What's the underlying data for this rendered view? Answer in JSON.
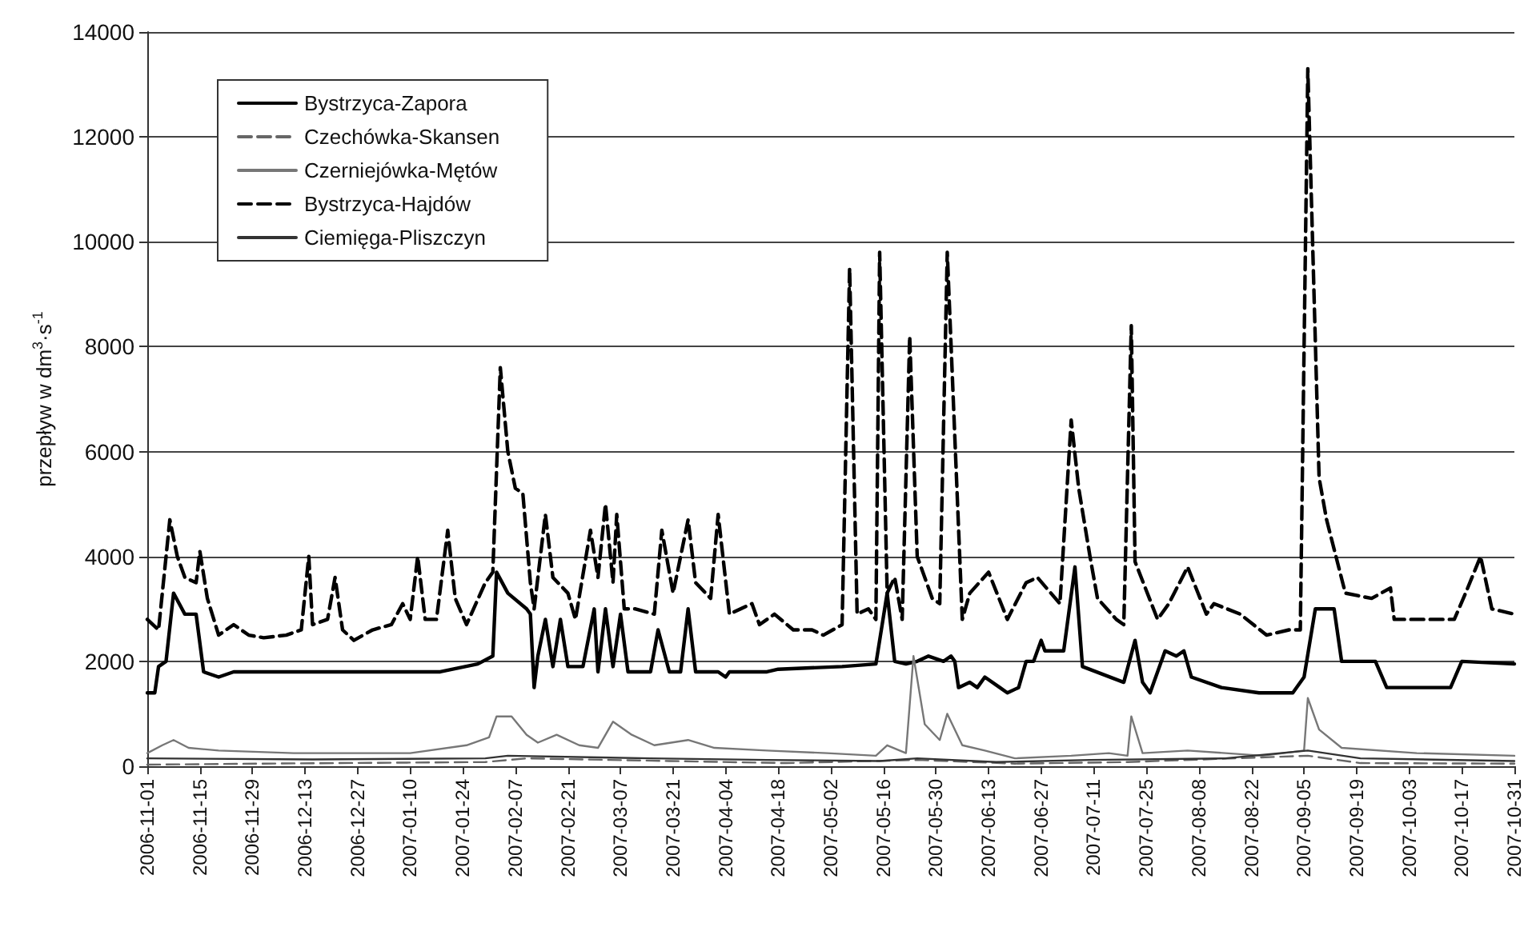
{
  "chart_data": {
    "type": "line",
    "ylabel": "przepływ w dm$^{3}$·s$^{-1}$",
    "ylim": [
      0,
      14000
    ],
    "yticks": [
      0,
      2000,
      4000,
      6000,
      8000,
      10000,
      12000,
      14000
    ],
    "xlim": [
      "2006-11-01",
      "2007-10-31"
    ],
    "xticks": [
      "2006-11-01",
      "2006-11-15",
      "2006-11-29",
      "2006-12-13",
      "2006-12-27",
      "2007-01-10",
      "2007-01-24",
      "2007-02-07",
      "2007-02-21",
      "2007-03-07",
      "2007-03-21",
      "2007-04-04",
      "2007-04-18",
      "2007-05-02",
      "2007-05-16",
      "2007-05-30",
      "2007-06-13",
      "2007-06-27",
      "2007-07-11",
      "2007-07-25",
      "2007-08-08",
      "2007-08-22",
      "2007-09-05",
      "2007-09-19",
      "2007-10-03",
      "2007-10-17",
      "2007-10-31"
    ],
    "grid": "y",
    "legend": "top left",
    "marker": "none",
    "series": [
      {
        "name": "Bystrzyca-Zapora",
        "color": "#000000",
        "line_style": "solid",
        "x": [
          "2006-11-01",
          "2006-11-03",
          "2006-11-04",
          "2006-11-06",
          "2006-11-08",
          "2006-11-11",
          "2006-11-14",
          "2006-11-16",
          "2006-11-20",
          "2006-11-24",
          "2006-12-10",
          "2007-01-18",
          "2007-01-28",
          "2007-02-01",
          "2007-02-02",
          "2007-02-05",
          "2007-02-10",
          "2007-02-11",
          "2007-02-12",
          "2007-02-13",
          "2007-02-15",
          "2007-02-17",
          "2007-02-19",
          "2007-02-21",
          "2007-02-25",
          "2007-02-28",
          "2007-03-01",
          "2007-03-03",
          "2007-03-05",
          "2007-03-07",
          "2007-03-09",
          "2007-03-15",
          "2007-03-17",
          "2007-03-20",
          "2007-03-23",
          "2007-03-25",
          "2007-03-27",
          "2007-04-02",
          "2007-04-04",
          "2007-04-05",
          "2007-04-15",
          "2007-04-18",
          "2007-05-05",
          "2007-05-14",
          "2007-05-17",
          "2007-05-19",
          "2007-05-22",
          "2007-05-25",
          "2007-05-28",
          "2007-06-01",
          "2007-06-03",
          "2007-06-04",
          "2007-06-05",
          "2007-06-08",
          "2007-06-10",
          "2007-06-12",
          "2007-06-16",
          "2007-06-18",
          "2007-06-21",
          "2007-06-23",
          "2007-06-25",
          "2007-06-27",
          "2007-06-28",
          "2007-07-03",
          "2007-07-06",
          "2007-07-08",
          "2007-07-19",
          "2007-07-22",
          "2007-07-24",
          "2007-07-26",
          "2007-07-30",
          "2007-08-02",
          "2007-08-04",
          "2007-08-06",
          "2007-08-14",
          "2007-08-24",
          "2007-09-02",
          "2007-09-05",
          "2007-09-08",
          "2007-09-13",
          "2007-09-15",
          "2007-09-24",
          "2007-09-27",
          "2007-10-14",
          "2007-10-17",
          "2007-10-31"
        ],
        "values": [
          1400,
          1400,
          1900,
          2000,
          3300,
          2900,
          2900,
          1800,
          1700,
          1800,
          1800,
          1800,
          1950,
          2100,
          3700,
          3300,
          3000,
          2900,
          1500,
          2100,
          2800,
          1900,
          2800,
          1900,
          1900,
          3000,
          1800,
          3000,
          1900,
          2900,
          1800,
          1800,
          2600,
          1800,
          1800,
          3000,
          1800,
          1800,
          1700,
          1800,
          1800,
          1850,
          1900,
          1950,
          3300,
          2000,
          1950,
          2000,
          2100,
          2000,
          2100,
          2000,
          1500,
          1600,
          1500,
          1700,
          1500,
          1400,
          1500,
          2000,
          2000,
          2400,
          2200,
          2200,
          3800,
          1900,
          1600,
          2400,
          1600,
          1400,
          2200,
          2100,
          2200,
          1700,
          1500,
          1400,
          1400,
          1700,
          3000,
          3000,
          2000,
          2000,
          1500,
          1500,
          2000,
          1950
        ]
      },
      {
        "name": "Czechówka-Skansen",
        "color": "#666666",
        "line_style": "dashed",
        "x": [
          "2006-11-01",
          "2006-12-01",
          "2007-01-30",
          "2007-02-10",
          "2007-03-20",
          "2007-04-20",
          "2007-05-25",
          "2007-06-20",
          "2007-07-20",
          "2007-09-06",
          "2007-09-20",
          "2007-10-31"
        ],
        "values": [
          30,
          50,
          80,
          150,
          100,
          60,
          120,
          50,
          80,
          200,
          60,
          50
        ]
      },
      {
        "name": "Czerniejówka-Mętów",
        "color": "#777777",
        "line_style": "solid",
        "x": [
          "2006-11-01",
          "2006-11-05",
          "2006-11-08",
          "2006-11-12",
          "2006-11-20",
          "2006-12-10",
          "2007-01-10",
          "2007-01-25",
          "2007-01-31",
          "2007-02-02",
          "2007-02-06",
          "2007-02-10",
          "2007-02-13",
          "2007-02-18",
          "2007-02-24",
          "2007-03-01",
          "2007-03-05",
          "2007-03-10",
          "2007-03-16",
          "2007-03-25",
          "2007-04-01",
          "2007-04-15",
          "2007-05-01",
          "2007-05-14",
          "2007-05-17",
          "2007-05-22",
          "2007-05-24",
          "2007-05-27",
          "2007-05-31",
          "2007-06-02",
          "2007-06-06",
          "2007-06-12",
          "2007-06-20",
          "2007-07-05",
          "2007-07-15",
          "2007-07-20",
          "2007-07-21",
          "2007-07-24",
          "2007-08-05",
          "2007-08-25",
          "2007-09-05",
          "2007-09-06",
          "2007-09-09",
          "2007-09-15",
          "2007-10-05",
          "2007-10-31"
        ],
        "values": [
          250,
          400,
          500,
          350,
          300,
          250,
          250,
          400,
          550,
          950,
          950,
          600,
          450,
          600,
          400,
          350,
          850,
          600,
          400,
          500,
          350,
          300,
          250,
          200,
          400,
          250,
          2100,
          800,
          500,
          1000,
          400,
          300,
          150,
          200,
          250,
          200,
          950,
          250,
          300,
          200,
          300,
          1300,
          700,
          350,
          250,
          200
        ]
      },
      {
        "name": "Bystrzyca-Hajdów",
        "color": "#000000",
        "line_style": "dashed",
        "x": [
          "2006-11-01",
          "2006-11-04",
          "2006-11-07",
          "2006-11-09",
          "2006-11-11",
          "2006-11-14",
          "2006-11-15",
          "2006-11-17",
          "2006-11-20",
          "2006-11-24",
          "2006-11-28",
          "2006-12-02",
          "2006-12-08",
          "2006-12-12",
          "2006-12-14",
          "2006-12-15",
          "2006-12-19",
          "2006-12-21",
          "2006-12-23",
          "2006-12-26",
          "2006-12-31",
          "2007-01-05",
          "2007-01-08",
          "2007-01-10",
          "2007-01-12",
          "2007-01-14",
          "2007-01-17",
          "2007-01-20",
          "2007-01-22",
          "2007-01-25",
          "2007-01-30",
          "2007-02-01",
          "2007-02-03",
          "2007-02-05",
          "2007-02-07",
          "2007-02-09",
          "2007-02-11",
          "2007-02-12",
          "2007-02-15",
          "2007-02-17",
          "2007-02-21",
          "2007-02-23",
          "2007-02-27",
          "2007-03-01",
          "2007-03-03",
          "2007-03-05",
          "2007-03-06",
          "2007-03-08",
          "2007-03-11",
          "2007-03-16",
          "2007-03-18",
          "2007-03-21",
          "2007-03-25",
          "2007-03-27",
          "2007-03-31",
          "2007-04-02",
          "2007-04-05",
          "2007-04-11",
          "2007-04-13",
          "2007-04-17",
          "2007-04-22",
          "2007-04-27",
          "2007-04-30",
          "2007-05-05",
          "2007-05-07",
          "2007-05-09",
          "2007-05-12",
          "2007-05-14",
          "2007-05-15",
          "2007-05-17",
          "2007-05-19",
          "2007-05-21",
          "2007-05-23",
          "2007-05-25",
          "2007-05-29",
          "2007-05-31",
          "2007-06-02",
          "2007-06-06",
          "2007-06-08",
          "2007-06-13",
          "2007-06-18",
          "2007-06-23",
          "2007-06-26",
          "2007-07-02",
          "2007-07-05",
          "2007-07-07",
          "2007-07-10",
          "2007-07-12",
          "2007-07-17",
          "2007-07-19",
          "2007-07-21",
          "2007-07-22",
          "2007-07-28",
          "2007-07-31",
          "2007-08-05",
          "2007-08-10",
          "2007-08-12",
          "2007-08-19",
          "2007-08-26",
          "2007-09-01",
          "2007-09-04",
          "2007-09-06",
          "2007-09-09",
          "2007-09-11",
          "2007-09-16",
          "2007-09-23",
          "2007-09-28",
          "2007-09-29",
          "2007-10-15",
          "2007-10-18",
          "2007-10-22",
          "2007-10-25",
          "2007-10-31"
        ],
        "values": [
          2800,
          2600,
          4700,
          4000,
          3600,
          3500,
          4100,
          3200,
          2500,
          2700,
          2500,
          2450,
          2500,
          2600,
          4000,
          2700,
          2800,
          3600,
          2600,
          2400,
          2600,
          2700,
          3100,
          2800,
          4000,
          2800,
          2800,
          4500,
          3200,
          2700,
          3500,
          3700,
          7600,
          6000,
          5300,
          5200,
          3500,
          3000,
          4800,
          3600,
          3300,
          2800,
          4500,
          3600,
          5000,
          3500,
          4800,
          3000,
          3000,
          2900,
          4500,
          3300,
          4700,
          3500,
          3200,
          4800,
          2900,
          3100,
          2700,
          2900,
          2600,
          2600,
          2500,
          2700,
          9500,
          2900,
          3000,
          2800,
          9800,
          3300,
          3600,
          2800,
          8200,
          4000,
          3200,
          3100,
          9800,
          2800,
          3300,
          3700,
          2800,
          3500,
          3600,
          3100,
          6600,
          5300,
          4000,
          3200,
          2800,
          2700,
          8400,
          3900,
          2800,
          3100,
          3800,
          2900,
          3100,
          2900,
          2500,
          2600,
          2600,
          13300,
          5500,
          4700,
          3300,
          3200,
          3400,
          2800,
          2800,
          3300,
          4000,
          3000,
          2900
        ]
      },
      {
        "name": "Ciemięga-Pliszczyn",
        "color": "#333333",
        "line_style": "solid",
        "x": [
          "2006-11-01",
          "2006-12-15",
          "2007-01-30",
          "2007-02-05",
          "2007-03-15",
          "2007-04-15",
          "2007-05-15",
          "2007-05-25",
          "2007-06-15",
          "2007-07-10",
          "2007-08-15",
          "2007-09-06",
          "2007-09-20",
          "2007-10-31"
        ],
        "values": [
          150,
          130,
          150,
          200,
          150,
          120,
          100,
          150,
          80,
          120,
          150,
          300,
          150,
          100
        ]
      }
    ]
  }
}
